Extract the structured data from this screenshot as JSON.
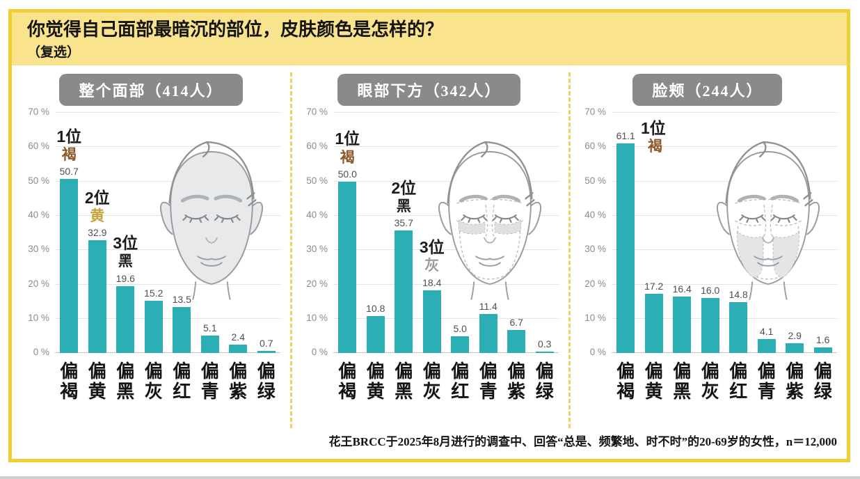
{
  "page": {
    "title": "你觉得自己面部最暗沉的部位，皮肤颜色是怎样的？",
    "subtitle": "（复选）",
    "footnote": "花王BRCC于2025年8月进行的调查中、回答“总是、频繁地、时不时”的20-69岁的女性，n＝12,000"
  },
  "colors": {
    "bar": "#2BAFB5",
    "frame_border": "#F0CE35",
    "title_band_bg": "#F9E38C",
    "divider": "#E7D463",
    "header_bg": "#8A8A8A",
    "header_text": "#FFFFFF",
    "rank_brown": "#8C5A2B",
    "rank_yellow": "#C6A33C",
    "rank_black": "#222222",
    "rank_gray": "#9C9C9C"
  },
  "axis": {
    "ticks": [
      "0 %",
      "10 %",
      "20 %",
      "30 %",
      "40 %",
      "50 %",
      "60 %",
      "70 %"
    ],
    "step": 10,
    "max": 70,
    "grid": true
  },
  "chart_data": [
    {
      "type": "bar",
      "title": "整个面部（414人）",
      "categories": [
        "偏褐",
        "偏黄",
        "偏黑",
        "偏灰",
        "偏红",
        "偏青",
        "偏紫",
        "偏绿"
      ],
      "values": [
        50.7,
        32.9,
        19.6,
        15.2,
        13.5,
        5.1,
        2.4,
        0.7
      ],
      "xlabel": "",
      "ylabel": "%",
      "ylim": [
        0,
        70
      ],
      "face_variant": "full",
      "annotations": [
        {
          "rank": "1位",
          "color_label": "褐",
          "category": "偏褐",
          "color_key": "rank_brown",
          "placement": "above"
        },
        {
          "rank": "2位",
          "color_label": "黄",
          "category": "偏黄",
          "color_key": "rank_yellow",
          "placement": "above"
        },
        {
          "rank": "3位",
          "color_label": "黑",
          "category": "偏黑",
          "color_key": "rank_black",
          "placement": "above"
        }
      ]
    },
    {
      "type": "bar",
      "title": "眼部下方（342人）",
      "categories": [
        "偏褐",
        "偏黄",
        "偏黑",
        "偏灰",
        "偏红",
        "偏青",
        "偏紫",
        "偏绿"
      ],
      "values": [
        50.0,
        10.8,
        35.7,
        18.4,
        5.0,
        11.4,
        6.7,
        0.3
      ],
      "xlabel": "",
      "ylabel": "%",
      "ylim": [
        0,
        70
      ],
      "face_variant": "under_eye",
      "annotations": [
        {
          "rank": "1位",
          "color_label": "褐",
          "category": "偏褐",
          "color_key": "rank_brown",
          "placement": "above"
        },
        {
          "rank": "2位",
          "color_label": "黑",
          "category": "偏黑",
          "color_key": "rank_black",
          "placement": "above"
        },
        {
          "rank": "3位",
          "color_label": "灰",
          "category": "偏灰",
          "color_key": "rank_gray",
          "placement": "above"
        }
      ]
    },
    {
      "type": "bar",
      "title": "脸颊（244人）",
      "categories": [
        "偏褐",
        "偏黄",
        "偏黑",
        "偏灰",
        "偏红",
        "偏青",
        "偏紫",
        "偏绿"
      ],
      "values": [
        61.1,
        17.2,
        16.4,
        16.0,
        14.8,
        4.1,
        2.9,
        1.6
      ],
      "xlabel": "",
      "ylabel": "%",
      "ylim": [
        0,
        70
      ],
      "face_variant": "cheeks",
      "annotations": [
        {
          "rank": "1位",
          "color_label": "褐",
          "category": "偏褐",
          "color_key": "rank_brown",
          "placement": "side"
        }
      ]
    }
  ]
}
